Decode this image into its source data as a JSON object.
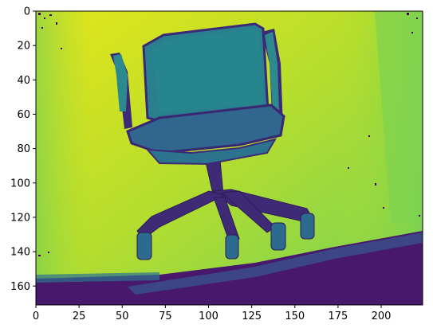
{
  "image": {
    "title": "",
    "colormap": "viridis",
    "subject": "office-chair-depth-map",
    "extent_x": [
      0,
      224
    ],
    "extent_y": [
      0,
      171
    ]
  },
  "axes": {
    "x_ticks": [
      0,
      25,
      50,
      75,
      100,
      125,
      150,
      175,
      200
    ],
    "y_ticks": [
      0,
      20,
      40,
      60,
      80,
      100,
      120,
      140,
      160
    ]
  },
  "colors": {
    "background_far": "#e2e41c",
    "background_mid": "#a6d83a",
    "background_near": "#67cc5c",
    "chair_back": "#2b8a8a",
    "chair_seat": "#2f6d8e",
    "chair_frame": "#3e2a75",
    "floor": "#48186a",
    "floor_edge": "#3a3b8a",
    "noise_dark": "#44025a"
  }
}
